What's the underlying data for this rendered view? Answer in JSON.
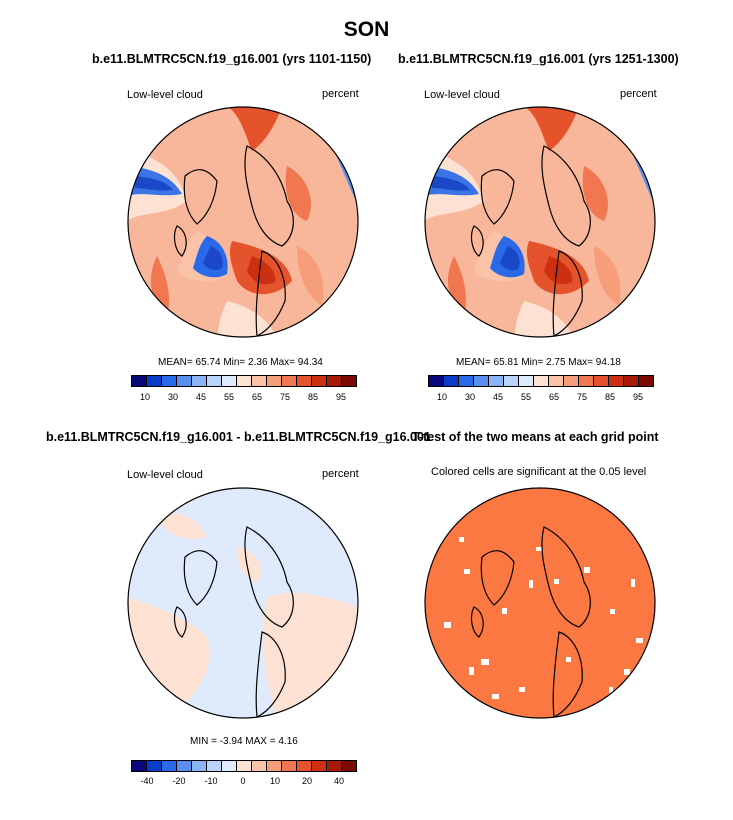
{
  "figure": {
    "title": "SON",
    "panels": [
      {
        "title": "b.e11.BLMTRC5CN.f19_g16.001 (yrs 1101-1150)",
        "left_label": "Low-level cloud",
        "right_label": "percent",
        "stats": "MEAN=  65.74  Min=   2.36  Max=  94.34",
        "colorbar_ticks": [
          "10",
          "30",
          "45",
          "55",
          "65",
          "75",
          "85",
          "95"
        ]
      },
      {
        "title": "b.e11.BLMTRC5CN.f19_g16.001 (yrs 1251-1300)",
        "left_label": "Low-level cloud",
        "right_label": "percent",
        "stats": "MEAN=  65.81  Min=   2.75  Max=  94.18",
        "colorbar_ticks": [
          "10",
          "30",
          "45",
          "55",
          "65",
          "75",
          "85",
          "95"
        ]
      },
      {
        "title": "b.e11.BLMTRC5CN.f19_g16.001 - b.e11.BLMTRC5CN.f19_g16.001",
        "left_label": "Low-level cloud",
        "right_label": "percent",
        "stats": "MIN =  -3.94  MAX =  4.16",
        "colorbar_ticks": [
          "-40",
          "-20",
          "-10",
          "0",
          "10",
          "20",
          "40"
        ]
      },
      {
        "title": "T-test of the two means at each grid point",
        "subtitle": "Colored cells are significant at the 0.05 level"
      }
    ]
  },
  "colors": {
    "colorbar": [
      "#08087a",
      "#0a3cc8",
      "#2a6ae8",
      "#5a8ff0",
      "#8ab4f6",
      "#b9d3fa",
      "#dfeafd",
      "#fde2d3",
      "#fac3a8",
      "#f69e7a",
      "#f17750",
      "#e5532c",
      "#cc3010",
      "#a81a08",
      "#7a0a02"
    ],
    "ocean_base": "#f8b69a",
    "diff_fill": "#dfeafd",
    "diff_warm": "#fde2d3",
    "ttest_fill": "#fb7842"
  }
}
